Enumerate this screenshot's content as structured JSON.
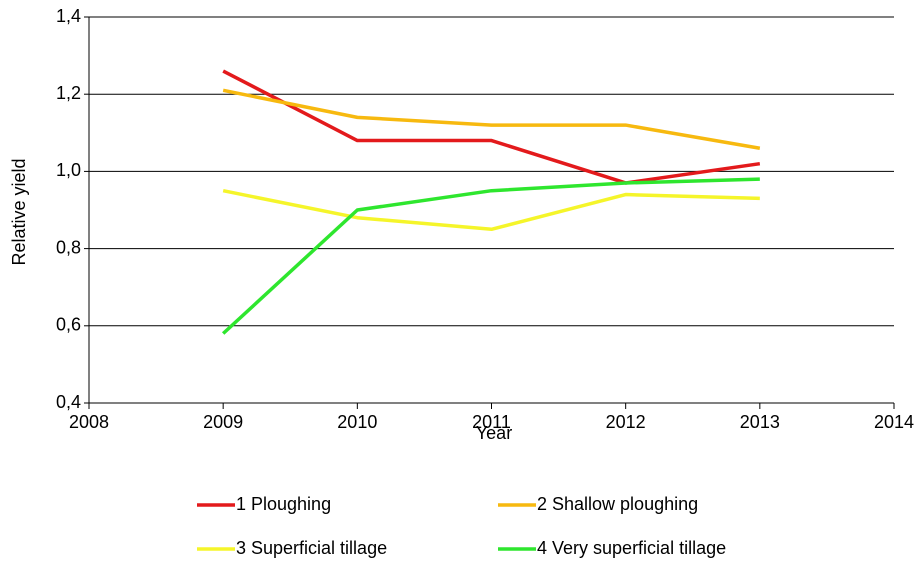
{
  "chart_data": {
    "type": "line",
    "x_label": "Year",
    "y_label": "Relative yield",
    "x": [
      2009,
      2010,
      2011,
      2012,
      2013
    ],
    "series": [
      {
        "name": "1 Ploughing",
        "color": "#e31a1c",
        "values": [
          1.26,
          1.08,
          1.08,
          0.97,
          1.02
        ]
      },
      {
        "name": "2 Shallow ploughing",
        "color": "#f7b90f",
        "values": [
          1.21,
          1.14,
          1.12,
          1.12,
          1.06
        ]
      },
      {
        "name": "3 Superficial tillage",
        "color": "#f5f52a",
        "values": [
          0.95,
          0.88,
          0.85,
          0.94,
          0.93
        ]
      },
      {
        "name": "4 Very superficial tillage",
        "color": "#2ee62e",
        "values": [
          0.58,
          0.9,
          0.95,
          0.97,
          0.98
        ]
      }
    ],
    "xlim": [
      2008,
      2014
    ],
    "xticks": [
      2008,
      2009,
      2010,
      2011,
      2012,
      2013,
      2014
    ],
    "ylim": [
      0.4,
      1.4
    ],
    "yticks": [
      {
        "value": 0.4,
        "label": "0,4"
      },
      {
        "value": 0.6,
        "label": "0,6"
      },
      {
        "value": 0.8,
        "label": "0,8"
      },
      {
        "value": 1.0,
        "label": "1,0"
      },
      {
        "value": 1.2,
        "label": "1,2"
      },
      {
        "value": 1.4,
        "label": "1,4"
      }
    ],
    "grid": true
  }
}
